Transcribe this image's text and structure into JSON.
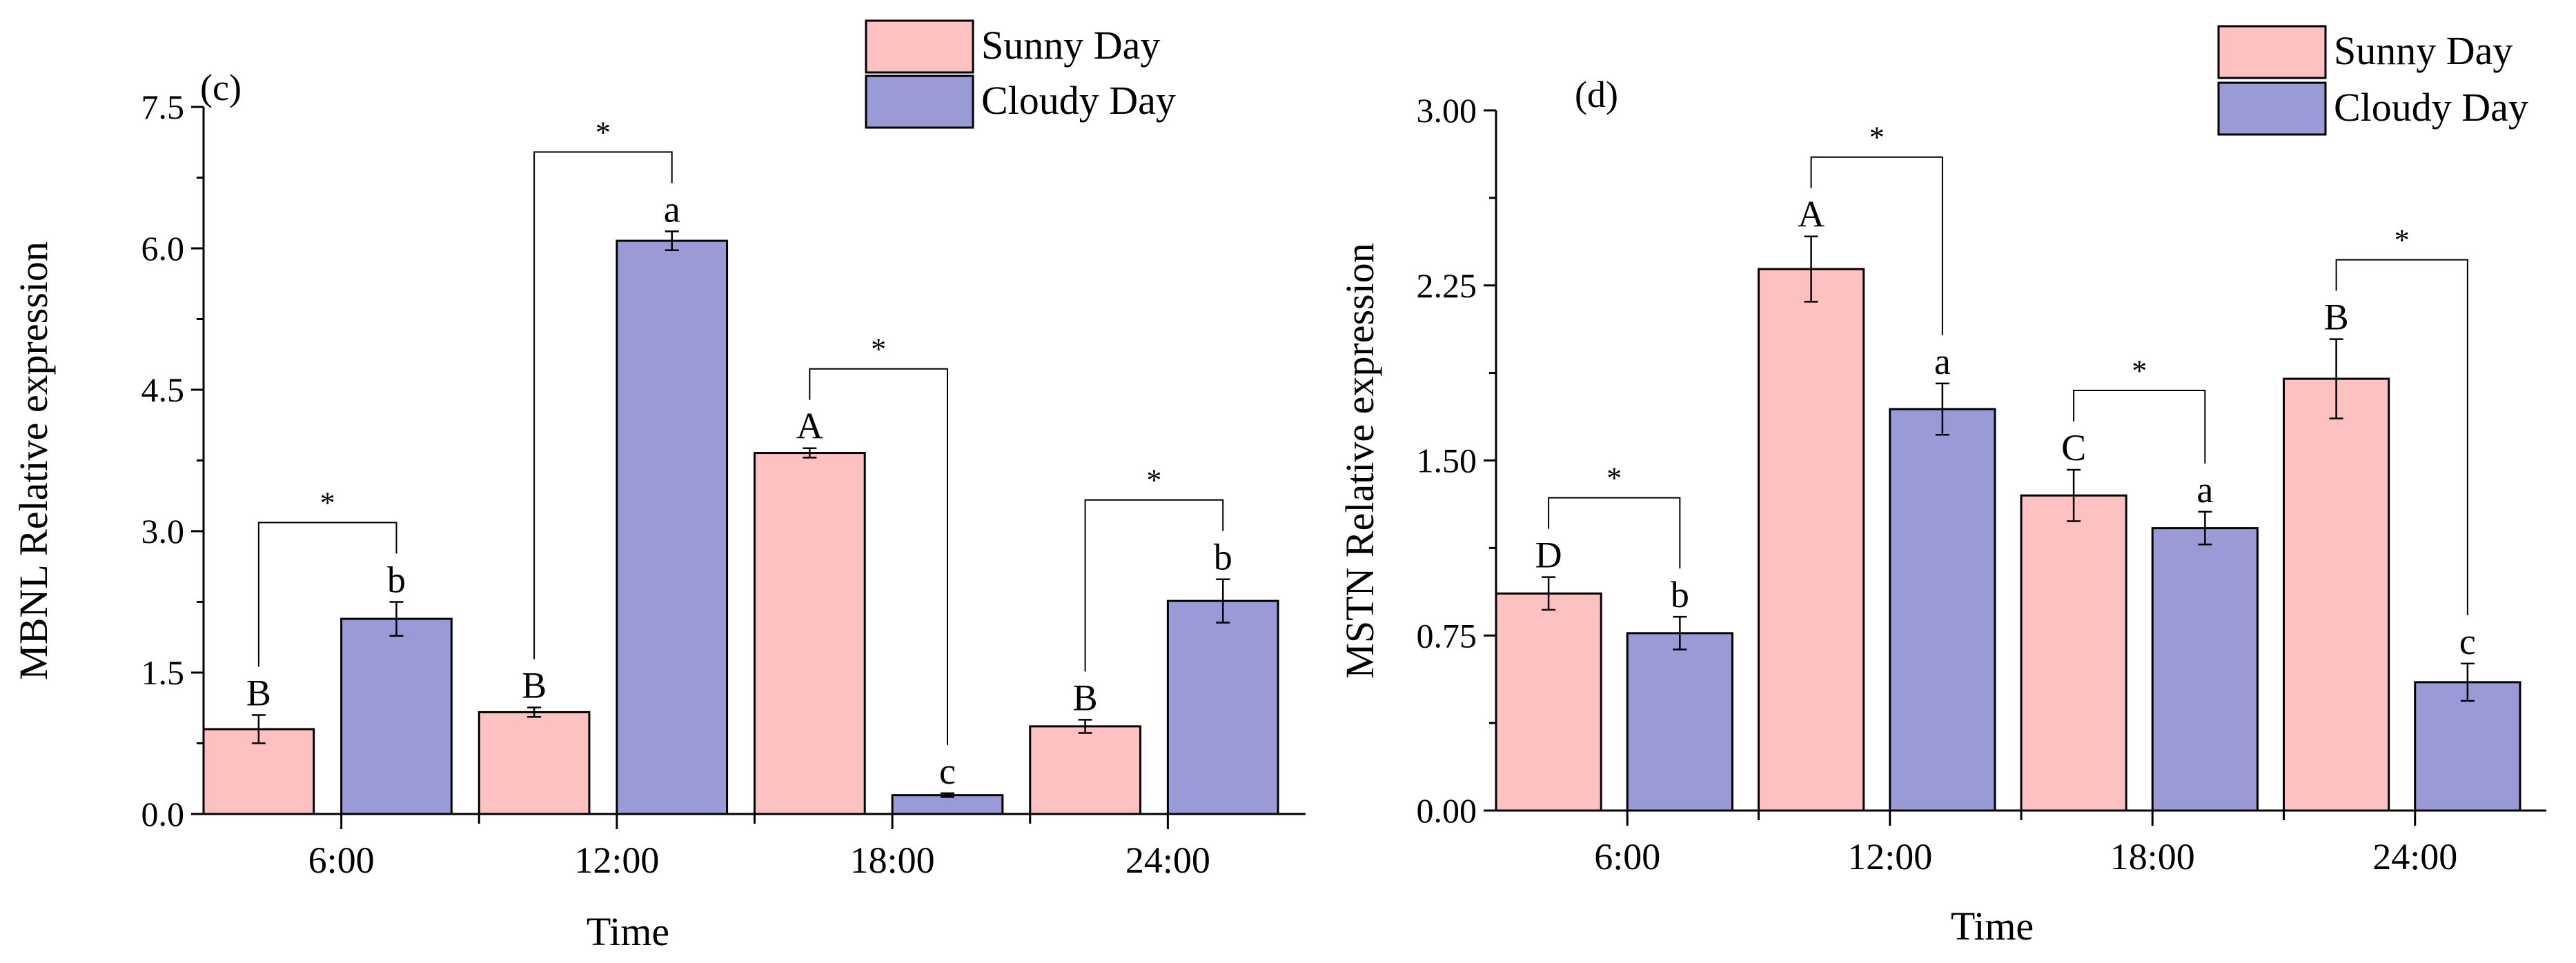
{
  "chart_data": [
    {
      "type": "bar",
      "panel_label": "(c)",
      "categories": [
        "6:00",
        "12:00",
        "18:00",
        "24:00"
      ],
      "series": [
        {
          "name": "Sunny  Day",
          "color": "#fdc1c1",
          "values": [
            0.9,
            1.08,
            3.83,
            0.93
          ],
          "errors": [
            0.15,
            0.05,
            0.05,
            0.07
          ],
          "letters": [
            "B",
            "B",
            "A",
            "B"
          ]
        },
        {
          "name": "Cloudy Day",
          "color": "#9a9ad6",
          "values": [
            2.07,
            6.08,
            0.2,
            2.26
          ],
          "errors": [
            0.18,
            0.1,
            0.02,
            0.23
          ],
          "letters": [
            "b",
            "a",
            "c",
            "b"
          ]
        }
      ],
      "significance": [
        "*",
        "*",
        "*",
        "*"
      ],
      "title": "",
      "xlabel": "Time",
      "ylabel": "MBNL Relative expression",
      "ylim": [
        0,
        7.5
      ],
      "yticks": [
        0,
        1.5,
        3.0,
        4.5,
        6.0,
        7.5
      ],
      "ytick_labels": [
        "0.0",
        "1.5",
        "3.0",
        "4.5",
        "6.0",
        "7.5"
      ],
      "grid": false,
      "legend": "top-right"
    },
    {
      "type": "bar",
      "panel_label": "(d)",
      "categories": [
        "6:00",
        "12:00",
        "18:00",
        "24:00"
      ],
      "series": [
        {
          "name": "Sunny  Day",
          "color": "#fdc1c1",
          "values": [
            0.93,
            2.32,
            1.35,
            1.85
          ],
          "errors": [
            0.07,
            0.14,
            0.11,
            0.17
          ],
          "letters": [
            "D",
            "A",
            "C",
            "B"
          ]
        },
        {
          "name": "Cloudy Day",
          "color": "#9a9ad6",
          "values": [
            0.76,
            1.72,
            1.21,
            0.55
          ],
          "errors": [
            0.07,
            0.11,
            0.07,
            0.08
          ],
          "letters": [
            "b",
            "a",
            "a",
            "c"
          ]
        }
      ],
      "significance": [
        "*",
        "*",
        "*",
        "*"
      ],
      "title": "",
      "xlabel": "Time",
      "ylabel": "MSTN Relative expression",
      "ylim": [
        0,
        3.0
      ],
      "yticks": [
        0,
        0.75,
        1.5,
        2.25,
        3.0
      ],
      "ytick_labels": [
        "0.00",
        "0.75",
        "1.50",
        "2.25",
        "3.00"
      ],
      "grid": false,
      "legend": "top-right"
    }
  ]
}
